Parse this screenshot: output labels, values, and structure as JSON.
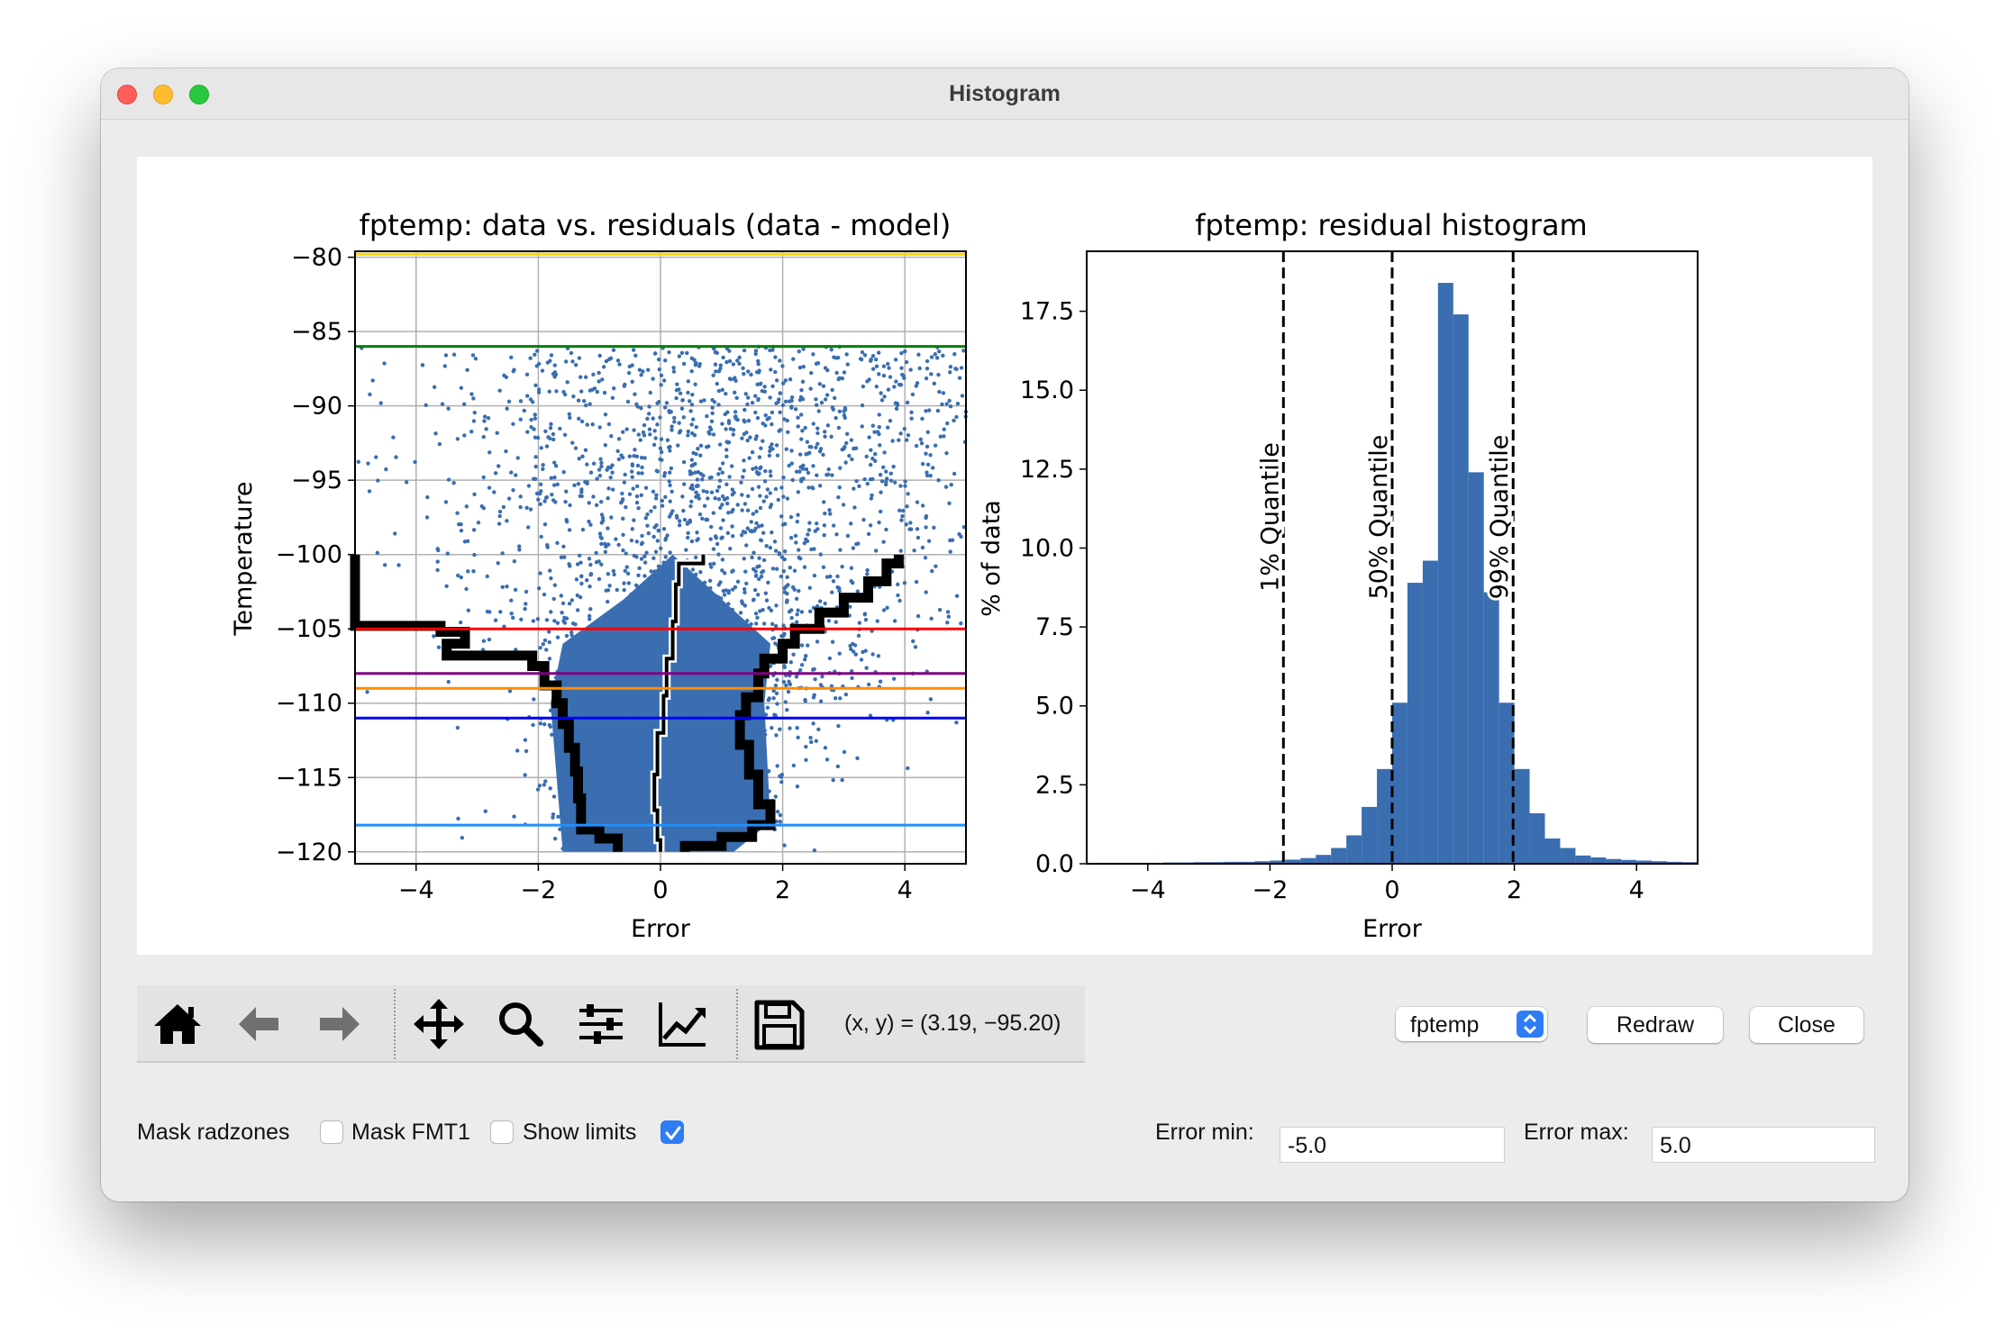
{
  "window": {
    "title": "Histogram"
  },
  "figure": {
    "left_plot": {
      "title": "fptemp: data vs. residuals (data - model)",
      "xlabel": "Error",
      "ylabel": "Temperature",
      "xlim": [
        -5,
        5
      ],
      "ylim": [
        -120.8,
        -79.6
      ],
      "xticks": [
        "−4",
        "−2",
        "0",
        "2",
        "4"
      ],
      "yticks": [
        "−80",
        "−85",
        "−90",
        "−95",
        "−100",
        "−105",
        "−110",
        "−115",
        "−120"
      ],
      "limit_lines": [
        {
          "y": -79.8,
          "color": "#ffd700"
        },
        {
          "y": -86.0,
          "color": "#008000"
        },
        {
          "y": -105.0,
          "color": "#ff0000"
        },
        {
          "y": -108.0,
          "color": "#800080"
        },
        {
          "y": -109.0,
          "color": "#ff8c00"
        },
        {
          "y": -111.0,
          "color": "#0000ff"
        },
        {
          "y": -118.2,
          "color": "#1e90ff"
        }
      ]
    },
    "right_plot": {
      "title": "fptemp: residual histogram",
      "xlabel": "Error",
      "ylabel": "% of data",
      "xticks": [
        "−4",
        "−2",
        "0",
        "2",
        "4"
      ],
      "yticks": [
        "0.0",
        "2.5",
        "5.0",
        "7.5",
        "10.0",
        "12.5",
        "15.0",
        "17.5"
      ],
      "quantiles": [
        {
          "label": "1% Quantile",
          "x": -1.78
        },
        {
          "label": "50% Quantile",
          "x": 0.0
        },
        {
          "label": "99% Quantile",
          "x": 1.98
        }
      ]
    }
  },
  "chart_data": [
    {
      "type": "scatter",
      "title": "fptemp: data vs. residuals (data - model)",
      "xlabel": "Error",
      "ylabel": "Temperature",
      "xlim": [
        -5,
        5
      ],
      "ylim": [
        -120.8,
        -79.6
      ],
      "grid": true,
      "series_color": "#3a6eb0",
      "horizontal_lines": [
        -79.8,
        -86.0,
        -105.0,
        -108.0,
        -109.0,
        -111.0,
        -118.2
      ],
      "quantile_curves": [
        {
          "name": "1%",
          "points": [
            [
              -5,
              -100
            ],
            [
              -5,
              -104.8
            ],
            [
              -3.6,
              -104.8
            ],
            [
              -3.6,
              -105.2
            ],
            [
              -3.2,
              -105.2
            ],
            [
              -3.2,
              -106
            ],
            [
              -3.5,
              -106
            ],
            [
              -3.5,
              -106.8
            ],
            [
              -2.1,
              -106.8
            ],
            [
              -2.1,
              -107.5
            ],
            [
              -1.9,
              -107.5
            ],
            [
              -1.9,
              -108.8
            ],
            [
              -1.7,
              -108.8
            ],
            [
              -1.7,
              -110
            ],
            [
              -1.6,
              -110
            ],
            [
              -1.6,
              -111.4
            ],
            [
              -1.5,
              -111.4
            ],
            [
              -1.5,
              -113
            ],
            [
              -1.4,
              -113
            ],
            [
              -1.4,
              -114.6
            ],
            [
              -1.35,
              -114.6
            ],
            [
              -1.35,
              -116.4
            ],
            [
              -1.3,
              -116.4
            ],
            [
              -1.3,
              -118.3
            ],
            [
              -1.3,
              -118.5
            ],
            [
              -1.0,
              -118.5
            ],
            [
              -1.0,
              -119.1
            ],
            [
              -0.7,
              -119.1
            ],
            [
              -0.7,
              -120
            ]
          ]
        },
        {
          "name": "50%",
          "points": [
            [
              0.7,
              -100
            ],
            [
              0.7,
              -100.6
            ],
            [
              0.3,
              -100.6
            ],
            [
              0.3,
              -102
            ],
            [
              0.25,
              -102
            ],
            [
              0.25,
              -104.5
            ],
            [
              0.2,
              -104.5
            ],
            [
              0.2,
              -107
            ],
            [
              0.1,
              -107
            ],
            [
              0.1,
              -109.5
            ],
            [
              0.05,
              -109.5
            ],
            [
              0.05,
              -112
            ],
            [
              -0.05,
              -112
            ],
            [
              -0.05,
              -114.8
            ],
            [
              -0.1,
              -114.8
            ],
            [
              -0.1,
              -117.2
            ],
            [
              -0.05,
              -117.2
            ],
            [
              -0.05,
              -119.2
            ],
            [
              0.0,
              -119.2
            ],
            [
              0.0,
              -120
            ]
          ]
        },
        {
          "name": "99%",
          "points": [
            [
              3.9,
              -100
            ],
            [
              3.9,
              -100.6
            ],
            [
              3.7,
              -100.6
            ],
            [
              3.7,
              -101.8
            ],
            [
              3.4,
              -101.8
            ],
            [
              3.4,
              -102.9
            ],
            [
              3.0,
              -102.9
            ],
            [
              3.0,
              -103.9
            ],
            [
              2.6,
              -103.9
            ],
            [
              2.6,
              -105.0
            ],
            [
              2.2,
              -105.0
            ],
            [
              2.2,
              -106.0
            ],
            [
              2.0,
              -106.0
            ],
            [
              2.0,
              -107.0
            ],
            [
              1.7,
              -107.0
            ],
            [
              1.7,
              -108.0
            ],
            [
              1.6,
              -108.0
            ],
            [
              1.6,
              -109.6
            ],
            [
              1.4,
              -109.6
            ],
            [
              1.4,
              -110.8
            ],
            [
              1.3,
              -110.8
            ],
            [
              1.3,
              -112.8
            ],
            [
              1.45,
              -112.8
            ],
            [
              1.45,
              -114.8
            ],
            [
              1.6,
              -114.8
            ],
            [
              1.6,
              -116.8
            ],
            [
              1.8,
              -116.8
            ],
            [
              1.8,
              -118.2
            ],
            [
              1.5,
              -118.2
            ],
            [
              1.5,
              -119
            ],
            [
              1.0,
              -119
            ],
            [
              1.0,
              -119.6
            ],
            [
              0.4,
              -119.6
            ],
            [
              0.4,
              -120
            ]
          ]
        }
      ]
    },
    {
      "type": "bar",
      "title": "fptemp: residual histogram",
      "xlabel": "Error",
      "ylabel": "% of data",
      "xlim": [
        -5,
        5
      ],
      "ylim": [
        0,
        19.4
      ],
      "bin_width": 0.25,
      "bin_start": -5.0,
      "values": [
        0.03,
        0.03,
        0.03,
        0.03,
        0.03,
        0.04,
        0.04,
        0.05,
        0.05,
        0.06,
        0.06,
        0.08,
        0.1,
        0.13,
        0.18,
        0.28,
        0.5,
        0.9,
        1.8,
        3.0,
        5.1,
        8.9,
        9.6,
        18.4,
        17.4,
        12.4,
        8.6,
        5.1,
        3.0,
        1.6,
        0.8,
        0.5,
        0.26,
        0.2,
        0.15,
        0.12,
        0.1,
        0.08,
        0.06,
        0.05
      ],
      "color": "#3a6eb0",
      "vertical_lines": [
        {
          "label": "1% Quantile",
          "x": -1.78
        },
        {
          "label": "50% Quantile",
          "x": 0.0
        },
        {
          "label": "99% Quantile",
          "x": 1.98
        }
      ]
    }
  ],
  "toolbar": {
    "buttons": [
      "home-icon",
      "back-icon",
      "forward-icon",
      "pan-icon",
      "zoom-icon",
      "configure-icon",
      "edit-axis-icon",
      "save-icon"
    ],
    "coords": "(x, y) = (3.19, −95.20)"
  },
  "controls": {
    "msid_select": "fptemp",
    "redraw": "Redraw",
    "close": "Close",
    "mask_radzones": "Mask radzones",
    "mask_fmt1": "Mask FMT1",
    "show_limits": "Show limits",
    "mask_radzones_checked": false,
    "mask_fmt1_checked": false,
    "show_limits_checked": true,
    "error_min_label": "Error min:",
    "error_min_value": "-5.0",
    "error_max_label": "Error max:",
    "error_max_value": "5.0"
  }
}
